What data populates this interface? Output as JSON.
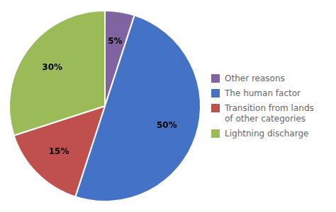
{
  "chart_data": {
    "type": "pie",
    "categories": [
      "Other reasons",
      "The human factor",
      "Transition from lands\nof other categories",
      "Lightning discharge"
    ],
    "values": [
      5,
      50,
      15,
      30
    ],
    "value_labels": [
      "5%",
      "50%",
      "15%",
      "30%"
    ],
    "colors": [
      "#8064A2",
      "#4472C4",
      "#C0504D",
      "#9BBB59"
    ],
    "data_labels": true,
    "legend": "right"
  }
}
